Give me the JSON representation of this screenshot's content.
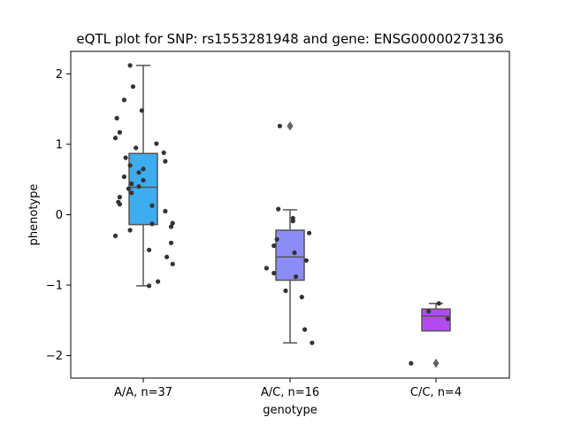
{
  "chart_data": {
    "type": "box",
    "title": "eQTL plot for SNP: rs1553281948 and gene: ENSG00000273136",
    "xlabel": "genotype",
    "ylabel": "phenotype",
    "ylim": [
      -2.32,
      2.32
    ],
    "yticks": [
      2,
      1,
      0,
      -1,
      -2
    ],
    "ytick_labels": [
      "2",
      "1",
      "0",
      "−1",
      "−2"
    ],
    "grid": false,
    "legend": "none",
    "categories": [
      "A/A, n=37",
      "A/C, n=16",
      "C/C, n=4"
    ],
    "colors": [
      "#3dadf0",
      "#8c8cf5",
      "#b24af0"
    ],
    "box_edge_color": "#545454",
    "point_color": "#333333",
    "boxes": [
      {
        "category": "A/A, n=37",
        "whisker_low": -1.01,
        "q1": -0.14,
        "median": 0.39,
        "q3": 0.87,
        "whisker_high": 2.12,
        "outliers": []
      },
      {
        "category": "A/C, n=16",
        "whisker_low": -1.82,
        "q1": -0.93,
        "median": -0.6,
        "q3": -0.22,
        "whisker_high": 0.07,
        "outliers": [
          1.26
        ]
      },
      {
        "category": "C/C, n=4",
        "whisker_low": -1.65,
        "q1": -1.65,
        "median": -1.44,
        "q3": -1.34,
        "whisker_high": -1.26,
        "outliers": [
          -2.11
        ]
      }
    ],
    "points": [
      {
        "category": "A/A, n=37",
        "jitter": -0.09,
        "y": 2.12
      },
      {
        "category": "A/A, n=37",
        "jitter": -0.07,
        "y": 1.82
      },
      {
        "category": "A/A, n=37",
        "jitter": -0.13,
        "y": 1.63
      },
      {
        "category": "A/A, n=37",
        "jitter": -0.01,
        "y": 1.48
      },
      {
        "category": "A/A, n=37",
        "jitter": -0.18,
        "y": 1.37
      },
      {
        "category": "A/A, n=37",
        "jitter": -0.16,
        "y": 1.17
      },
      {
        "category": "A/A, n=37",
        "jitter": -0.19,
        "y": 1.09
      },
      {
        "category": "A/A, n=37",
        "jitter": 0.09,
        "y": 1.01
      },
      {
        "category": "A/A, n=37",
        "jitter": -0.05,
        "y": 0.95
      },
      {
        "category": "A/A, n=37",
        "jitter": 0.14,
        "y": 0.88
      },
      {
        "category": "A/A, n=37",
        "jitter": -0.12,
        "y": 0.81
      },
      {
        "category": "A/A, n=37",
        "jitter": 0.15,
        "y": 0.76
      },
      {
        "category": "A/A, n=37",
        "jitter": -0.09,
        "y": 0.7
      },
      {
        "category": "A/A, n=37",
        "jitter": 0.0,
        "y": 0.65
      },
      {
        "category": "A/A, n=37",
        "jitter": -0.03,
        "y": 0.6
      },
      {
        "category": "A/A, n=37",
        "jitter": -0.13,
        "y": 0.54
      },
      {
        "category": "A/A, n=37",
        "jitter": 0.0,
        "y": 0.49
      },
      {
        "category": "A/A, n=37",
        "jitter": -0.08,
        "y": 0.44
      },
      {
        "category": "A/A, n=37",
        "jitter": -0.03,
        "y": 0.4
      },
      {
        "category": "A/A, n=37",
        "jitter": -0.1,
        "y": 0.37
      },
      {
        "category": "A/A, n=37",
        "jitter": -0.08,
        "y": 0.31
      },
      {
        "category": "A/A, n=37",
        "jitter": -0.16,
        "y": 0.25
      },
      {
        "category": "A/A, n=37",
        "jitter": -0.17,
        "y": 0.18
      },
      {
        "category": "A/A, n=37",
        "jitter": -0.16,
        "y": 0.15
      },
      {
        "category": "A/A, n=37",
        "jitter": 0.06,
        "y": 0.13
      },
      {
        "category": "A/A, n=37",
        "jitter": 0.15,
        "y": 0.05
      },
      {
        "category": "A/A, n=37",
        "jitter": 0.2,
        "y": -0.12
      },
      {
        "category": "A/A, n=37",
        "jitter": 0.06,
        "y": -0.13
      },
      {
        "category": "A/A, n=37",
        "jitter": 0.19,
        "y": -0.17
      },
      {
        "category": "A/A, n=37",
        "jitter": -0.09,
        "y": -0.22
      },
      {
        "category": "A/A, n=37",
        "jitter": -0.19,
        "y": -0.3
      },
      {
        "category": "A/A, n=37",
        "jitter": 0.19,
        "y": -0.4
      },
      {
        "category": "A/A, n=37",
        "jitter": 0.04,
        "y": -0.5
      },
      {
        "category": "A/A, n=37",
        "jitter": 0.16,
        "y": -0.6
      },
      {
        "category": "A/A, n=37",
        "jitter": 0.2,
        "y": -0.7
      },
      {
        "category": "A/A, n=37",
        "jitter": 0.1,
        "y": -0.95
      },
      {
        "category": "A/A, n=37",
        "jitter": 0.04,
        "y": -1.01
      },
      {
        "category": "A/C, n=16",
        "jitter": -0.07,
        "y": 1.26
      },
      {
        "category": "A/C, n=16",
        "jitter": -0.08,
        "y": 0.08
      },
      {
        "category": "A/C, n=16",
        "jitter": 0.02,
        "y": -0.05
      },
      {
        "category": "A/C, n=16",
        "jitter": 0.02,
        "y": -0.09
      },
      {
        "category": "A/C, n=16",
        "jitter": 0.13,
        "y": -0.26
      },
      {
        "category": "A/C, n=16",
        "jitter": -0.09,
        "y": -0.35
      },
      {
        "category": "A/C, n=16",
        "jitter": -0.11,
        "y": -0.44
      },
      {
        "category": "A/C, n=16",
        "jitter": 0.03,
        "y": -0.54
      },
      {
        "category": "A/C, n=16",
        "jitter": 0.11,
        "y": -0.65
      },
      {
        "category": "A/C, n=16",
        "jitter": -0.16,
        "y": -0.76
      },
      {
        "category": "A/C, n=16",
        "jitter": -0.11,
        "y": -0.83
      },
      {
        "category": "A/C, n=16",
        "jitter": 0.04,
        "y": -0.88
      },
      {
        "category": "A/C, n=16",
        "jitter": -0.03,
        "y": -1.08
      },
      {
        "category": "A/C, n=16",
        "jitter": 0.08,
        "y": -1.17
      },
      {
        "category": "A/C, n=16",
        "jitter": 0.1,
        "y": -1.63
      },
      {
        "category": "A/C, n=16",
        "jitter": 0.15,
        "y": -1.82
      },
      {
        "category": "C/C, n=4",
        "jitter": 0.02,
        "y": -1.26
      },
      {
        "category": "C/C, n=4",
        "jitter": -0.05,
        "y": -1.37
      },
      {
        "category": "C/C, n=4",
        "jitter": 0.08,
        "y": -1.48
      },
      {
        "category": "C/C, n=4",
        "jitter": -0.17,
        "y": -2.11
      }
    ]
  }
}
